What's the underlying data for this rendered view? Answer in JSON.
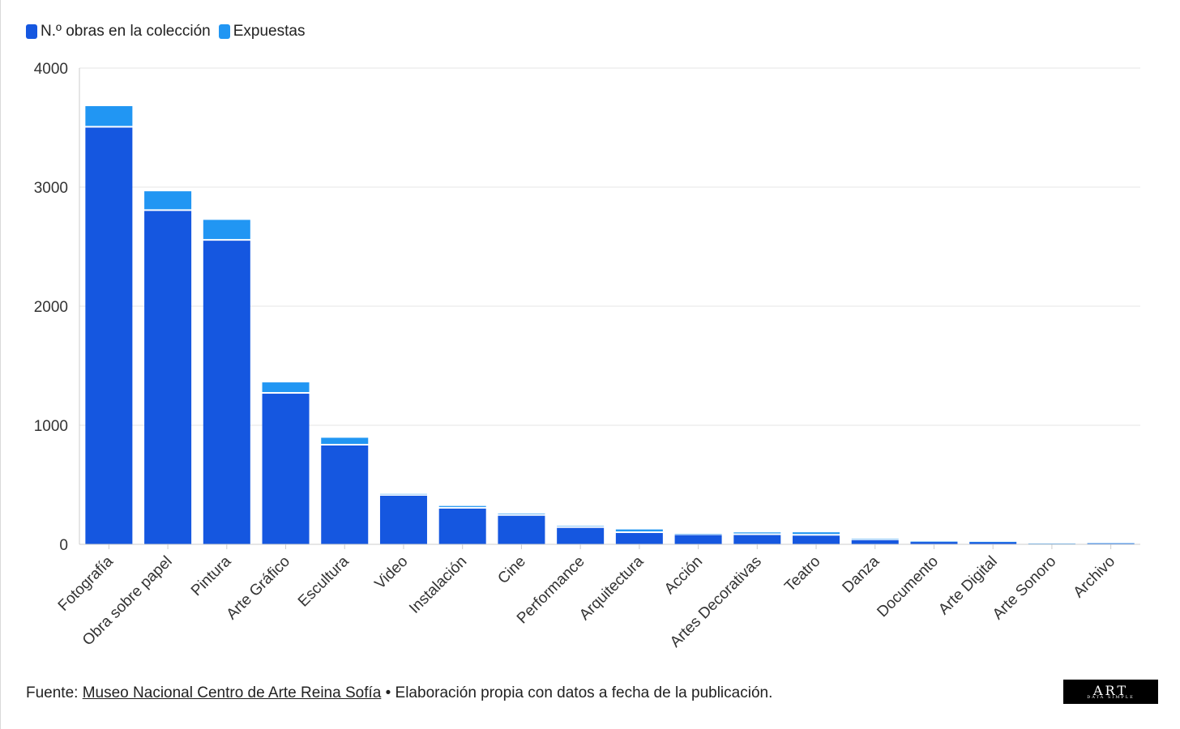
{
  "legend": {
    "collection_label": "N.º obras en la colección",
    "exhibited_label": "Expuestas"
  },
  "colors": {
    "collection": "#1557e0",
    "exhibited": "#2196f3",
    "grid": "#e6e6e6",
    "axis_text": "#333333"
  },
  "chart_data": {
    "type": "bar",
    "stacked": true,
    "categories": [
      "Fotografía",
      "Obra sobre papel",
      "Pintura",
      "Arte Gráfico",
      "Escultura",
      "Video",
      "Instalación",
      "Cine",
      "Performance",
      "Arquitectura",
      "Acción",
      "Artes Decorativas",
      "Teatro",
      "Danza",
      "Documento",
      "Arte Digital",
      "Arte Sonoro",
      "Archivo"
    ],
    "series": [
      {
        "name": "N.º obras en la colección",
        "values": [
          3500,
          2800,
          2550,
          1265,
          830,
          408,
          300,
          240,
          138,
          95,
          78,
          78,
          73,
          35,
          20,
          18,
          5,
          8
        ]
      },
      {
        "name": "Expuestas",
        "values": [
          180,
          165,
          175,
          95,
          65,
          15,
          22,
          18,
          15,
          30,
          8,
          22,
          28,
          10,
          3,
          3,
          1,
          1
        ]
      }
    ],
    "yticks": [
      0,
      1000,
      2000,
      3000,
      4000
    ],
    "ylim": [
      0,
      4000
    ],
    "xlabel": "",
    "ylabel": "",
    "legend_position": "top-left"
  },
  "footer": {
    "prefix": "Fuente: ",
    "source_link": "Museo Nacional Centro de Arte Reina Sofía",
    "suffix": " • Elaboración propia con datos a fecha de la publicación."
  },
  "logo": {
    "big": "ART",
    "small": "DATA SIMPLE"
  }
}
